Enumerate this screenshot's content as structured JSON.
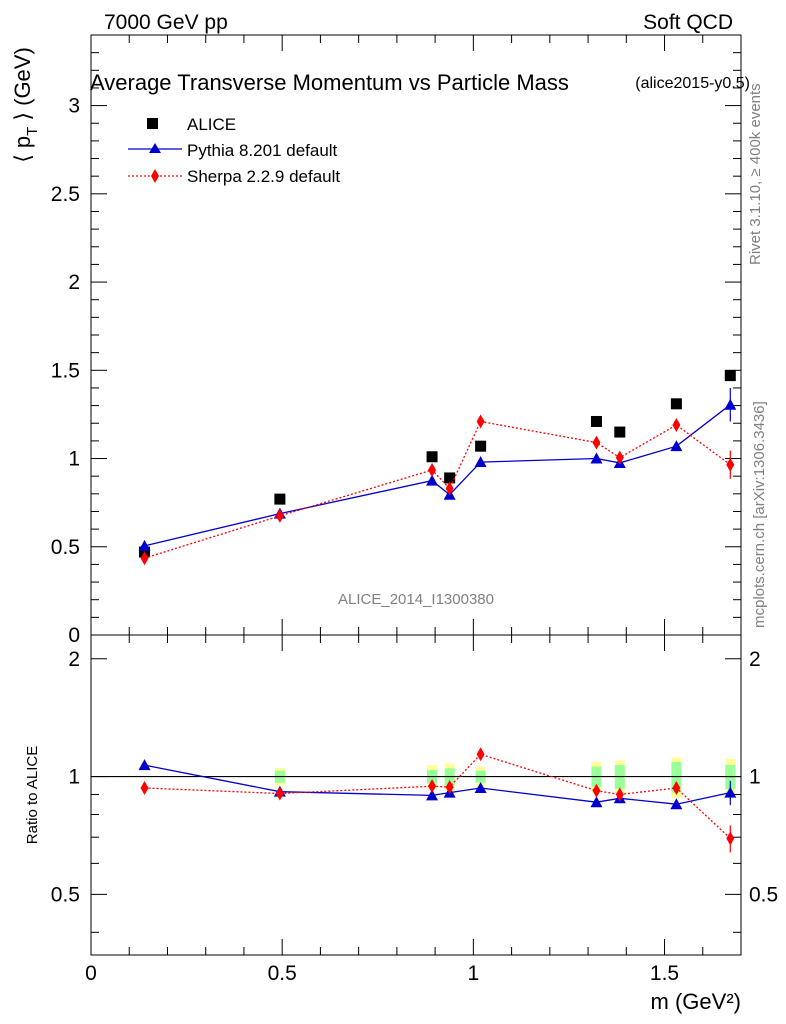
{
  "header": {
    "left": "7000 GeV pp",
    "right": "Soft QCD"
  },
  "side_notes": {
    "rivet": "Rivet 3.1.10, ≥ 400k events",
    "mcplots": "mcplots.cern.ch [arXiv:1306.3436]"
  },
  "chart_data": [
    {
      "type": "scatter",
      "title": "Average Transverse Momentum vs Particle Mass",
      "subtitle": "(alice2015-y0.5)",
      "ylabel": "⟨ p_T ⟩ (GeV)",
      "xlim": [
        0,
        1.7
      ],
      "ylim": [
        0,
        3.4
      ],
      "yticks": [
        "0.5",
        "1",
        "1.5",
        "2",
        "2.5",
        "3"
      ],
      "annotation": "ALICE_2014_I1300380",
      "legend_position": "top-left",
      "grid": false,
      "series": [
        {
          "name": "ALICE",
          "color": "#000000",
          "marker": "square",
          "line": "none",
          "x": [
            0.14,
            0.494,
            0.892,
            0.938,
            1.019,
            1.322,
            1.383,
            1.531,
            1.672
          ],
          "y": [
            0.47,
            0.77,
            1.01,
            0.89,
            1.07,
            1.21,
            1.15,
            1.31,
            1.47
          ]
        },
        {
          "name": "Pythia 8.201 default",
          "color": "#0000cc",
          "marker": "triangle",
          "line": "solid",
          "x": [
            0.14,
            0.494,
            0.892,
            0.938,
            1.019,
            1.322,
            1.383,
            1.531,
            1.672
          ],
          "y": [
            0.505,
            0.688,
            0.875,
            0.795,
            0.98,
            1.0,
            0.975,
            1.07,
            1.305
          ],
          "err": [
            0,
            0,
            0,
            0,
            0,
            0,
            0,
            0.025,
            0.095
          ]
        },
        {
          "name": "Sherpa 2.2.9 default",
          "color": "#ff0000",
          "marker": "diamond",
          "line": "dotted",
          "x": [
            0.14,
            0.494,
            0.892,
            0.938,
            1.019,
            1.322,
            1.383,
            1.531,
            1.672
          ],
          "y": [
            0.435,
            0.675,
            0.935,
            0.83,
            1.21,
            1.09,
            1.005,
            1.19,
            0.965
          ],
          "err": [
            0,
            0,
            0,
            0,
            0,
            0,
            0,
            0.02,
            0.08
          ]
        }
      ]
    },
    {
      "type": "scatter",
      "ylabel": "Ratio to ALICE",
      "xlabel": "m (GeV²)",
      "xlim": [
        0,
        1.7
      ],
      "ylim": [
        0.35,
        2.3
      ],
      "log_y": true,
      "xticks": [
        "0",
        "0.5",
        "1",
        "1.5"
      ],
      "yticks": [
        "0.5",
        "1",
        "2"
      ],
      "reference_line": 1,
      "band_x": [
        0.494,
        0.892,
        0.938,
        1.019,
        1.322,
        1.383,
        1.531,
        1.672
      ],
      "band_stat": [
        0.035,
        0.04,
        0.05,
        0.035,
        0.06,
        0.07,
        0.09,
        0.07
      ],
      "band_total": [
        0.05,
        0.07,
        0.08,
        0.06,
        0.09,
        0.1,
        0.12,
        0.11
      ],
      "series": [
        {
          "name": "Pythia 8.201 default",
          "color": "#0000cc",
          "marker": "triangle",
          "line": "solid",
          "x": [
            0.14,
            0.494,
            0.892,
            0.938,
            1.019,
            1.322,
            1.383,
            1.531,
            1.672
          ],
          "y": [
            1.07,
            0.915,
            0.895,
            0.91,
            0.935,
            0.86,
            0.88,
            0.85,
            0.91
          ],
          "err": [
            0,
            0,
            0,
            0,
            0,
            0,
            0,
            0.02,
            0.065
          ]
        },
        {
          "name": "Sherpa 2.2.9 default",
          "color": "#ff0000",
          "marker": "diamond",
          "line": "dotted",
          "x": [
            0.14,
            0.494,
            0.892,
            0.938,
            1.019,
            1.322,
            1.383,
            1.531,
            1.672
          ],
          "y": [
            0.935,
            0.905,
            0.945,
            0.94,
            1.14,
            0.92,
            0.9,
            0.935,
            0.695
          ],
          "err": [
            0,
            0,
            0,
            0,
            0,
            0,
            0,
            0.015,
            0.055
          ]
        }
      ]
    }
  ]
}
